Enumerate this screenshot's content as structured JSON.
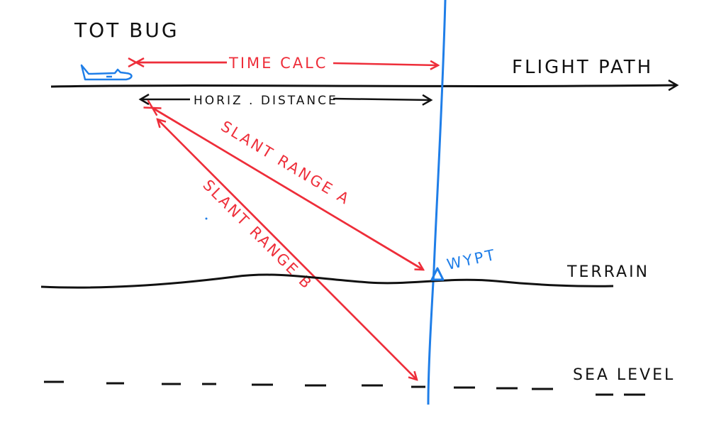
{
  "title": "TOT BUG",
  "colors": {
    "red": "#ee2e3a",
    "blue": "#1f7ee8",
    "black": "#111111"
  },
  "labels": {
    "time_calc": "TIME CALC",
    "flight_path": "FLIGHT PATH",
    "horiz_distance": "HORIZ . DISTANCE",
    "slant_range_a": "SLANT RANGE A",
    "slant_range_b": "SLANT RANGE B",
    "wypt": "WYPT",
    "terrain": "TERRAIN",
    "sea_level": "SEA LEVEL"
  },
  "icons": {
    "aircraft": "airplane-icon",
    "waypoint": "triangle-icon"
  }
}
